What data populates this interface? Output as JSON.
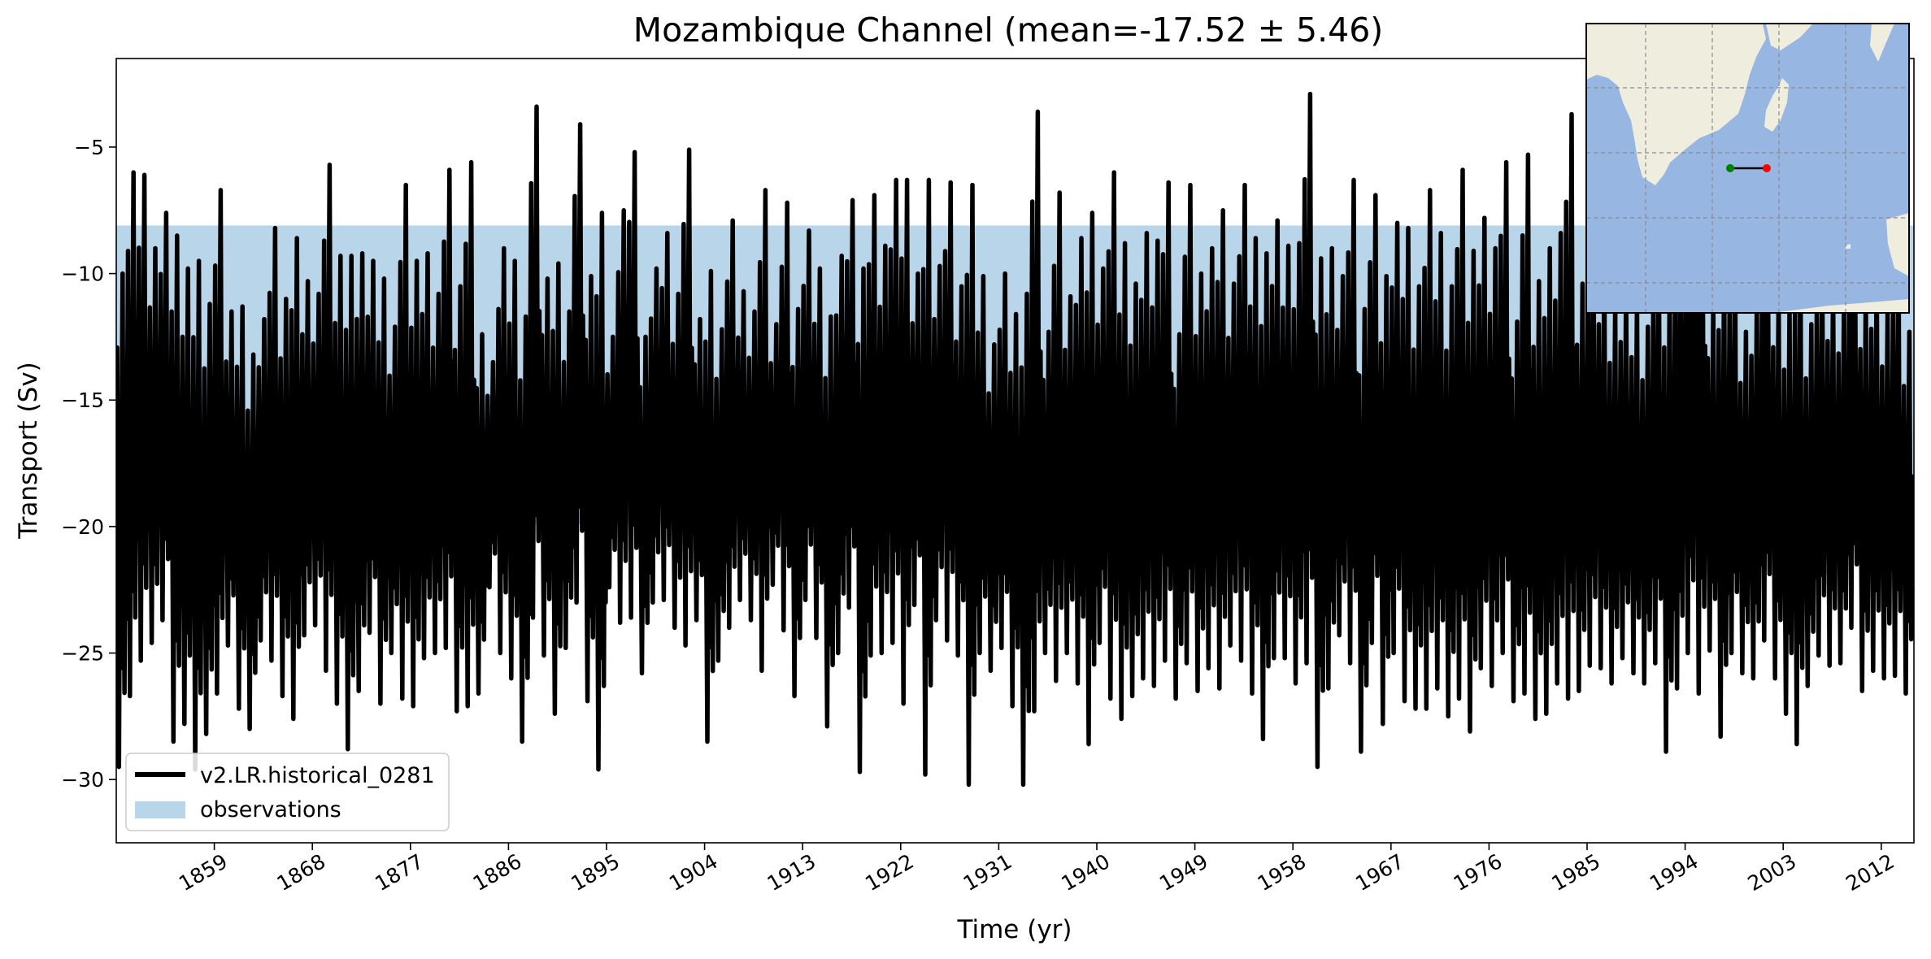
{
  "chart_data": {
    "type": "line",
    "title": "Mozambique Channel (mean=-17.52 ± 5.46)",
    "xlabel": "Time (yr)",
    "ylabel": "Transport (Sv)",
    "xlim": [
      1850,
      2015
    ],
    "ylim": [
      -32.5,
      -1.5
    ],
    "xticks": [
      1859,
      1868,
      1877,
      1886,
      1895,
      1904,
      1913,
      1922,
      1931,
      1940,
      1949,
      1958,
      1967,
      1976,
      1985,
      1994,
      2003,
      2012
    ],
    "yticks": [
      -5,
      -10,
      -15,
      -20,
      -25,
      -30
    ],
    "grid": false,
    "legend_location": "lower left",
    "observations_band": {
      "label": "observations",
      "range": [
        -19.9,
        -8.1
      ],
      "color": "#b9d5e9"
    },
    "series": [
      {
        "name": "v2.LR.historical_0281",
        "color": "#000000",
        "sampling": "monthly",
        "start_year": 1850,
        "values_annual_peak_max": [
          -10.0,
          -6.0,
          -6.1,
          -9.0,
          -7.6,
          -8.5,
          -9.8,
          -9.5,
          -11.2,
          -6.7,
          -11.5,
          -11.3,
          -13.2,
          -11.8,
          -8.2,
          -11.0,
          -8.6,
          -10.3,
          -10.8,
          -5.7,
          -9.3,
          -9.3,
          -9.2,
          -9.5,
          -10.2,
          -12.1,
          -6.5,
          -9.5,
          -9.2,
          -10.8,
          -5.9,
          -10.5,
          -5.6,
          -12.4,
          -13.5,
          -9.0,
          -9.5,
          -11.7,
          -3.4,
          -10.2,
          -9.6,
          -11.5,
          -4.1,
          -10.1,
          -7.6,
          -12.5,
          -7.5,
          -5.2,
          -12.5,
          -9.8,
          -8.4,
          -10.8,
          -5.1,
          -11.8,
          -9.9,
          -12.2,
          -7.9,
          -10.7,
          -11.5,
          -6.7,
          -12.0,
          -7.2,
          -11.4,
          -8.3,
          -9.8,
          -11.7,
          -9.3,
          -7.1,
          -9.8,
          -6.9,
          -8.9,
          -6.3,
          -6.3,
          -10.0,
          -6.3,
          -9.7,
          -6.4,
          -10.5,
          -6.5,
          -10.1,
          -12.8,
          -10.0,
          -11.6,
          -10.8,
          -3.6,
          -12.3,
          -6.8,
          -10.9,
          -8.6,
          -7.6,
          -9.8,
          -6.0,
          -8.8,
          -10.4,
          -8.4,
          -8.7,
          -6.4,
          -12.4,
          -6.5,
          -10.0,
          -9.0,
          -7.5,
          -10.4,
          -6.5,
          -8.6,
          -9.2,
          -7.9,
          -8.9,
          -8.8,
          -2.9,
          -9.4,
          -9.0,
          -10.1,
          -6.3,
          -11.4,
          -6.9,
          -10.1,
          -8.0,
          -8.2,
          -10.5,
          -6.7,
          -8.4,
          -10.5,
          -5.9,
          -9.1,
          -7.8,
          -9.0,
          -5.6,
          -11.9,
          -5.3,
          -10.3,
          -9.0,
          -8.4,
          -3.7,
          -10.4,
          -7.4,
          -9.6,
          -11.3,
          -10.5,
          -11.1,
          -12.1,
          -8.4,
          -10.1,
          -7.2,
          -5.8,
          -3.7,
          -11.3,
          -9.4,
          -8.9,
          -12.3,
          -11.0,
          -7.0,
          -10.6,
          -11.4,
          -8.5,
          -12.0,
          -9.2,
          -10.4,
          -11.0,
          -7.3,
          -10.6,
          -9.8,
          -11.5,
          -8.8,
          -12.3,
          -12.2,
          -11.0,
          -10.4,
          -8.6
        ],
        "values_annual_peak_min": [
          -29.5,
          -26.7,
          -25.3,
          -24.6,
          -23.7,
          -28.5,
          -27.8,
          -29.6,
          -28.2,
          -26.6,
          -24.7,
          -27.2,
          -28.0,
          -24.5,
          -25.3,
          -26.7,
          -27.6,
          -24.3,
          -23.9,
          -25.7,
          -27.0,
          -28.8,
          -26.5,
          -24.2,
          -27.0,
          -25.0,
          -26.8,
          -27.1,
          -25.2,
          -25.0,
          -24.8,
          -27.3,
          -27.1,
          -26.6,
          -22.4,
          -25.0,
          -26.0,
          -28.5,
          -23.6,
          -25.1,
          -27.4,
          -24.8,
          -23.0,
          -26.9,
          -29.6,
          -22.4,
          -23.8,
          -23.6,
          -25.8,
          -23.0,
          -22.9,
          -24.0,
          -24.7,
          -23.7,
          -28.5,
          -25.3,
          -24.0,
          -22.9,
          -23.7,
          -25.7,
          -22.3,
          -24.1,
          -26.7,
          -22.9,
          -24.4,
          -27.9,
          -25.0,
          -23.2,
          -29.7,
          -25.1,
          -25.0,
          -24.6,
          -27.0,
          -23.1,
          -29.8,
          -23.7,
          -24.5,
          -25.1,
          -30.2,
          -25.0,
          -25.7,
          -24.8,
          -27.1,
          -30.2,
          -27.3,
          -25.0,
          -26.1,
          -25.0,
          -26.2,
          -28.6,
          -24.6,
          -26.8,
          -27.6,
          -26.7,
          -26.0,
          -26.3,
          -25.3,
          -26.8,
          -25.4,
          -26.5,
          -25.6,
          -26.4,
          -24.7,
          -25.3,
          -26.6,
          -28.4,
          -25.2,
          -25.2,
          -26.2,
          -25.4,
          -29.5,
          -26.4,
          -24.3,
          -25.4,
          -28.9,
          -24.6,
          -27.8,
          -25.0,
          -26.9,
          -27.2,
          -27.2,
          -26.4,
          -27.5,
          -26.8,
          -28.1,
          -25.6,
          -26.3,
          -25.0,
          -26.9,
          -26.6,
          -27.6,
          -27.4,
          -26.2,
          -26.8,
          -26.5,
          -25.5,
          -25.6,
          -26.2,
          -25.2,
          -25.8,
          -26.2,
          -25.4,
          -28.9,
          -26.4,
          -25.0,
          -26.6,
          -24.9,
          -28.3,
          -25.0,
          -25.8,
          -26.0,
          -24.5,
          -26.0,
          -27.4,
          -28.6,
          -26.3,
          -25.1,
          -25.5,
          -25.4,
          -24.0,
          -26.5,
          -25.7,
          -26.0,
          -25.9,
          -26.6
        ]
      },
      {
        "name": "observations",
        "color": "#b9d5e9"
      }
    ],
    "inset_map": {
      "location": "upper right",
      "land_color": "#efedde",
      "ocean_color": "#97b6e1",
      "section_start_marker": "#008000",
      "section_end_marker": "#ff0000",
      "section_line_color": "#000000"
    }
  }
}
